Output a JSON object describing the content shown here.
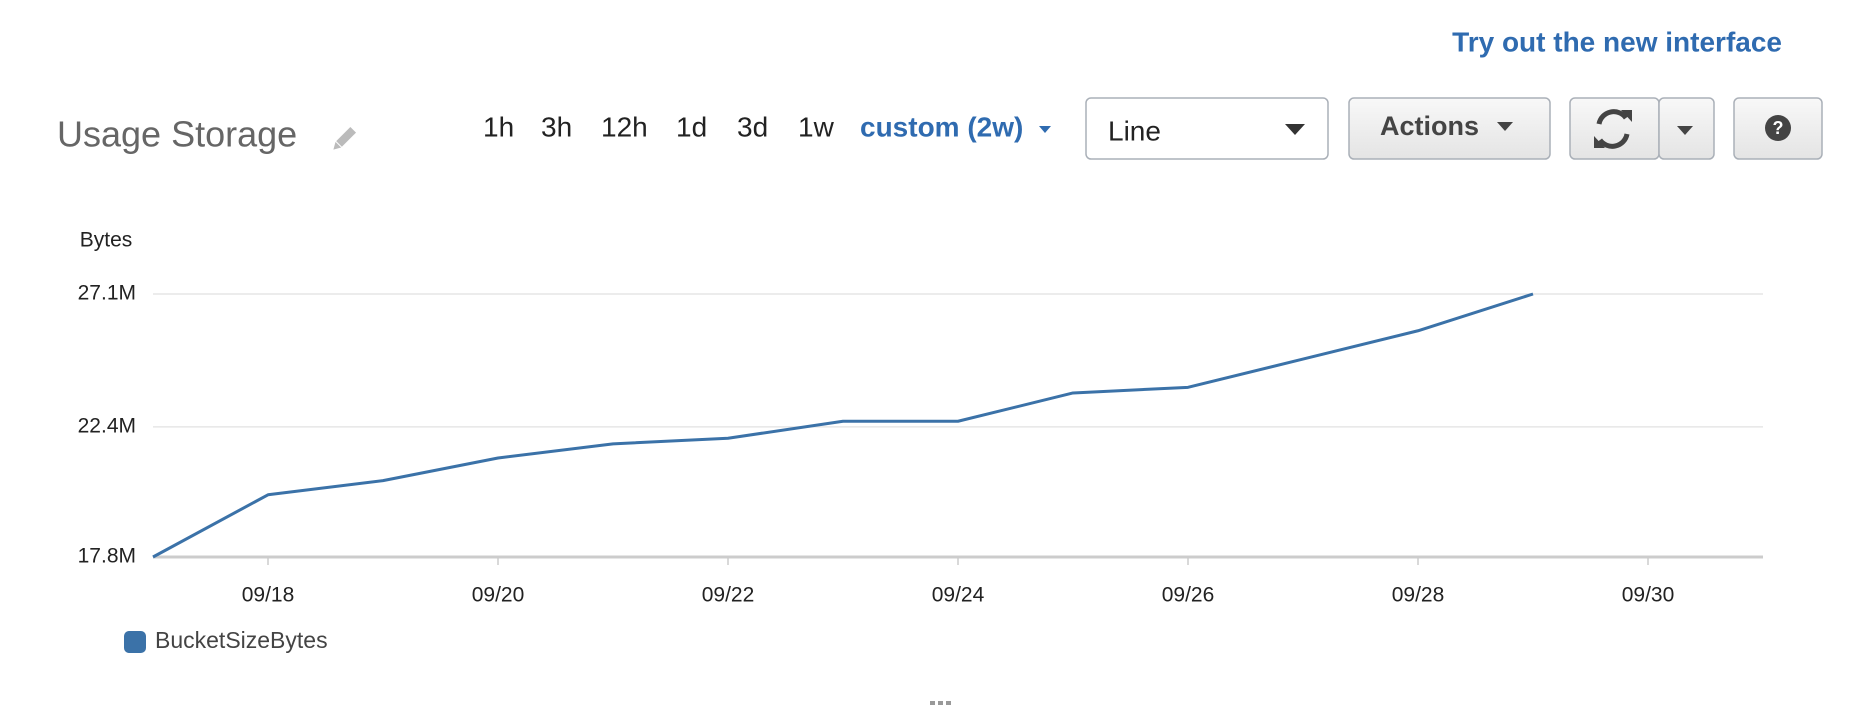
{
  "header": {
    "link": "Try out the new interface",
    "title": "Usage Storage"
  },
  "periods": [
    "1h",
    "3h",
    "12h",
    "1d",
    "3d",
    "1w"
  ],
  "selected_period": "custom (2w)",
  "view_select": "Line",
  "actions": "Actions",
  "chart_data": {
    "type": "line",
    "y_label": "Bytes",
    "x": [
      "09/17",
      "09/18",
      "09/19",
      "09/20",
      "09/21",
      "09/22",
      "09/23",
      "09/24",
      "09/25",
      "09/26",
      "09/27",
      "09/28",
      "09/29"
    ],
    "series": [
      {
        "name": "BucketSizeBytes",
        "color": "#3b72a8",
        "values": [
          17800000,
          20000000,
          20500000,
          21300000,
          21800000,
          22000000,
          22600000,
          22600000,
          23600000,
          23800000,
          24800000,
          25800000,
          27100000
        ]
      }
    ],
    "xlim": [
      "09/17",
      "10/01"
    ],
    "xticks": [
      "09/18",
      "09/20",
      "09/22",
      "09/24",
      "09/26",
      "09/28",
      "09/30"
    ],
    "ylim": [
      17800000,
      27100000
    ],
    "yticks": [
      {
        "value": 17800000,
        "label": "17.8M"
      },
      {
        "value": 22400000,
        "label": "22.4M"
      },
      {
        "value": 27100000,
        "label": "27.1M"
      }
    ],
    "grid": true,
    "legend": "bottom-left"
  }
}
